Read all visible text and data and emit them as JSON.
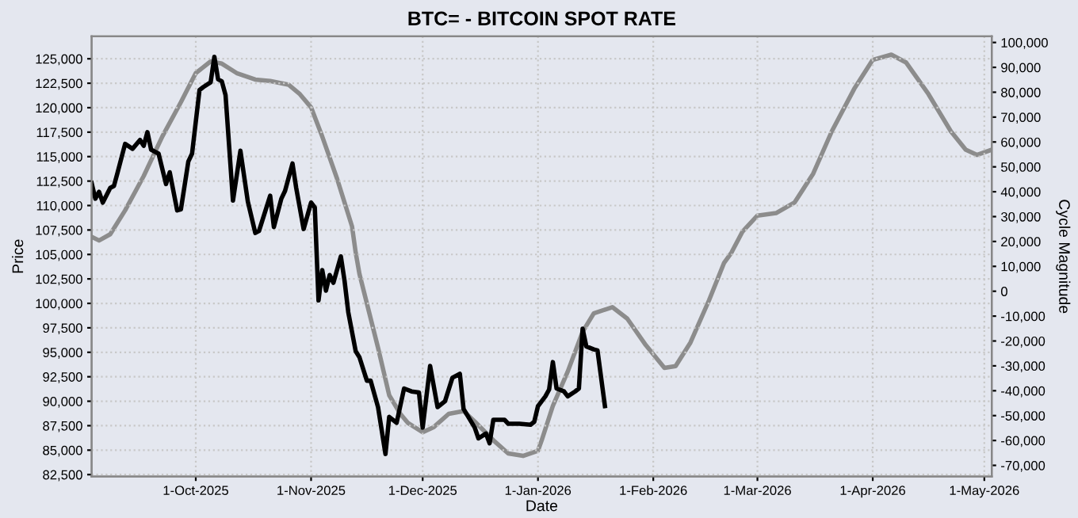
{
  "chart_data": {
    "type": "line",
    "title": "BTC= - BITCOIN SPOT RATE",
    "xlabel": "Date",
    "ylabel": "Price",
    "y2label": "Cycle Magnitude",
    "xlim": [
      "2025-09-03",
      "2026-05-03"
    ],
    "xticks": [
      {
        "value": "2025-10-01",
        "label": "1-Oct-2025"
      },
      {
        "value": "2025-11-01",
        "label": "1-Nov-2025"
      },
      {
        "value": "2025-12-01",
        "label": "1-Dec-2025"
      },
      {
        "value": "2026-01-01",
        "label": "1-Jan-2026"
      },
      {
        "value": "2026-02-01",
        "label": "1-Feb-2026"
      },
      {
        "value": "2026-03-01",
        "label": "1-Mar-2026"
      },
      {
        "value": "2026-04-01",
        "label": "1-Apr-2026"
      },
      {
        "value": "2026-05-01",
        "label": "1-May-2026"
      }
    ],
    "ylim": [
      82300,
      127300
    ],
    "yticks": [
      {
        "value": 82500,
        "label": "82,500"
      },
      {
        "value": 85000,
        "label": "85,000"
      },
      {
        "value": 87500,
        "label": "87,500"
      },
      {
        "value": 90000,
        "label": "90,000"
      },
      {
        "value": 92500,
        "label": "92,500"
      },
      {
        "value": 95000,
        "label": "95,000"
      },
      {
        "value": 97500,
        "label": "97,500"
      },
      {
        "value": 100000,
        "label": "100,000"
      },
      {
        "value": 102500,
        "label": "102,500"
      },
      {
        "value": 105000,
        "label": "105,000"
      },
      {
        "value": 107500,
        "label": "107,500"
      },
      {
        "value": 110000,
        "label": "110,000"
      },
      {
        "value": 112500,
        "label": "112,500"
      },
      {
        "value": 115000,
        "label": "115,000"
      },
      {
        "value": 117500,
        "label": "117,500"
      },
      {
        "value": 120000,
        "label": "120,000"
      },
      {
        "value": 122500,
        "label": "122,500"
      },
      {
        "value": 125000,
        "label": "125,000"
      }
    ],
    "y2lim": [
      -74500,
      102500
    ],
    "y2ticks": [
      {
        "value": -70000,
        "label": "-70,000"
      },
      {
        "value": -60000,
        "label": "-60,000"
      },
      {
        "value": -50000,
        "label": "-50,000"
      },
      {
        "value": -40000,
        "label": "-40,000"
      },
      {
        "value": -30000,
        "label": "-30,000"
      },
      {
        "value": -20000,
        "label": "-20,000"
      },
      {
        "value": -10000,
        "label": "-10,000"
      },
      0,
      {
        "value": 10000,
        "label": "10,000"
      },
      {
        "value": 20000,
        "label": "20,000"
      },
      {
        "value": 30000,
        "label": "30,000"
      },
      {
        "value": 40000,
        "label": "40,000"
      },
      {
        "value": 50000,
        "label": "50,000"
      },
      {
        "value": 60000,
        "label": "60,000"
      },
      {
        "value": 70000,
        "label": "70,000"
      },
      {
        "value": 80000,
        "label": "80,000"
      },
      {
        "value": 90000,
        "label": "90,000"
      },
      {
        "value": 100000,
        "label": "100,000"
      }
    ],
    "grid": true,
    "series": [
      {
        "color": "#8c8c8c",
        "axis": "y2",
        "x": [
          "2025-09-03",
          "2025-09-05",
          "2025-09-08",
          "2025-09-12",
          "2025-09-17",
          "2025-09-22",
          "2025-09-27",
          "2025-10-01",
          "2025-10-05",
          "2025-10-08",
          "2025-10-12",
          "2025-10-17",
          "2025-10-21",
          "2025-10-26",
          "2025-10-29",
          "2025-11-01",
          "2025-11-04",
          "2025-11-08",
          "2025-11-12",
          "2025-11-13",
          "2025-11-14",
          "2025-11-19",
          "2025-11-22",
          "2025-11-25",
          "2025-11-27",
          "2025-12-01",
          "2025-12-04",
          "2025-12-08",
          "2025-12-12",
          "2025-12-15",
          "2025-12-20",
          "2025-12-24",
          "2025-12-28",
          "2026-01-01",
          "2026-01-02",
          "2026-01-05",
          "2026-01-09",
          "2026-01-13",
          "2026-01-16",
          "2026-01-21",
          "2026-01-25",
          "2026-01-30",
          "2026-02-04",
          "2026-02-07",
          "2026-02-11",
          "2026-02-16",
          "2026-02-20",
          "2026-02-22",
          "2026-02-25",
          "2026-03-01",
          "2026-03-06",
          "2026-03-11",
          "2026-03-16",
          "2026-03-21",
          "2026-03-27",
          "2026-04-01",
          "2026-04-06",
          "2026-04-10",
          "2026-04-16",
          "2026-04-22",
          "2026-04-26",
          "2026-04-29",
          "2026-05-03"
        ],
        "values": [
          21900,
          20400,
          22900,
          32500,
          46300,
          62200,
          76000,
          87700,
          92400,
          91500,
          87700,
          85100,
          84500,
          83000,
          79200,
          73900,
          62200,
          45200,
          26100,
          15500,
          7000,
          -22700,
          -41800,
          -49300,
          -52900,
          -56700,
          -54600,
          -49300,
          -48200,
          -52400,
          -59900,
          -65200,
          -66200,
          -64100,
          -59900,
          -46100,
          -32300,
          -16300,
          -8900,
          -6400,
          -11000,
          -21700,
          -30800,
          -30100,
          -20600,
          -3600,
          11300,
          15500,
          24000,
          30400,
          31400,
          35700,
          47300,
          64300,
          81300,
          93000,
          95100,
          91900,
          79200,
          64300,
          56900,
          54800,
          56900
        ]
      },
      {
        "color": "#000000",
        "x": [
          "2025-09-03",
          "2025-09-04",
          "2025-09-05",
          "2025-09-06",
          "2025-09-08",
          "2025-09-09",
          "2025-09-10",
          "2025-09-12",
          "2025-09-14",
          "2025-09-16",
          "2025-09-17",
          "2025-09-18",
          "2025-09-19",
          "2025-09-21",
          "2025-09-23",
          "2025-09-24",
          "2025-09-26",
          "2025-09-27",
          "2025-09-29",
          "2025-09-30",
          "2025-10-02",
          "2025-10-03",
          "2025-10-05",
          "2025-10-06",
          "2025-10-07",
          "2025-10-08",
          "2025-10-09",
          "2025-10-11",
          "2025-10-13",
          "2025-10-15",
          "2025-10-17",
          "2025-10-18",
          "2025-10-21",
          "2025-10-22",
          "2025-10-24",
          "2025-10-25",
          "2025-10-27",
          "2025-10-28",
          "2025-10-30",
          "2025-11-01",
          "2025-11-02",
          "2025-11-03",
          "2025-11-04",
          "2025-11-05",
          "2025-11-06",
          "2025-11-07",
          "2025-11-09",
          "2025-11-10",
          "2025-11-11",
          "2025-11-13",
          "2025-11-14",
          "2025-11-16",
          "2025-11-17",
          "2025-11-19",
          "2025-11-21",
          "2025-11-22",
          "2025-11-24",
          "2025-11-26",
          "2025-11-28",
          "2025-11-30",
          "2025-12-01",
          "2025-12-03",
          "2025-12-05",
          "2025-12-07",
          "2025-12-09",
          "2025-12-11",
          "2025-12-12",
          "2025-12-15",
          "2025-12-16",
          "2025-12-18",
          "2025-12-19",
          "2025-12-20",
          "2025-12-23",
          "2025-12-24",
          "2025-12-27",
          "2025-12-30",
          "2025-12-31",
          "2026-01-01",
          "2026-01-03",
          "2026-01-04",
          "2026-01-05",
          "2026-01-06",
          "2026-01-08",
          "2026-01-09",
          "2026-01-11",
          "2026-01-12",
          "2026-01-13",
          "2026-01-14",
          "2026-01-16",
          "2026-01-17",
          "2026-01-19"
        ],
        "values": [
          112300,
          110700,
          111400,
          110300,
          111800,
          112000,
          113400,
          116300,
          115800,
          116700,
          116100,
          117500,
          115700,
          115300,
          112200,
          113400,
          109500,
          109600,
          114500,
          115300,
          121800,
          122100,
          122600,
          125200,
          122900,
          122700,
          121300,
          110500,
          115600,
          110400,
          107200,
          107400,
          111000,
          107800,
          110700,
          111500,
          114300,
          111800,
          107600,
          110300,
          109800,
          100300,
          103400,
          101300,
          102900,
          102100,
          104800,
          102300,
          99100,
          95100,
          94500,
          92100,
          92100,
          89400,
          84600,
          88400,
          87800,
          91300,
          91000,
          90900,
          87300,
          93600,
          89400,
          90000,
          92400,
          92800,
          89200,
          87300,
          86200,
          86700,
          85700,
          88100,
          88100,
          87700,
          87700,
          87600,
          87900,
          89500,
          90500,
          91200,
          94000,
          91300,
          91000,
          90500,
          91000,
          91300,
          97400,
          95600,
          95300,
          95200,
          89500
        ]
      }
    ]
  }
}
